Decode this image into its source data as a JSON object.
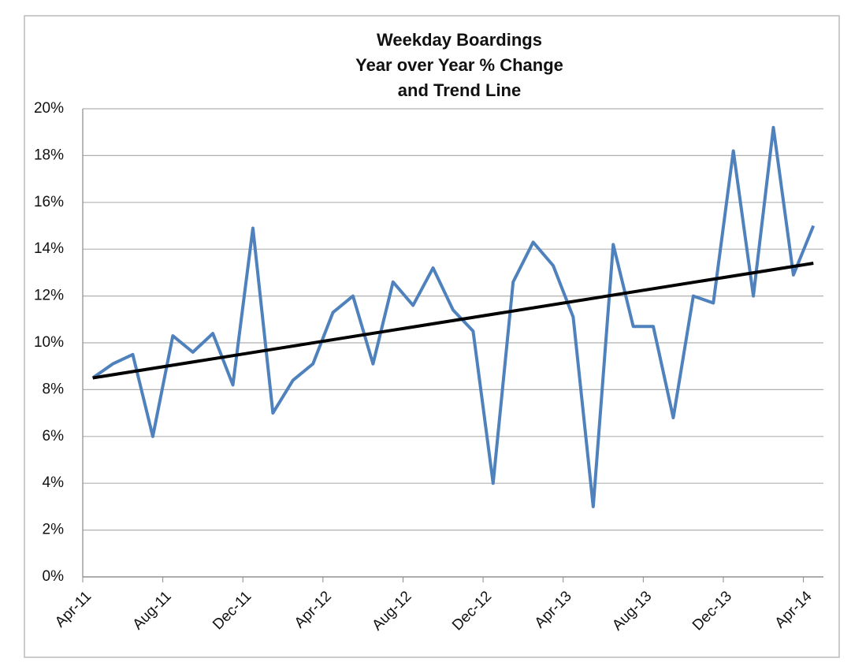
{
  "chart_data": {
    "type": "line",
    "title": [
      "Weekday Boardings",
      "Year over Year % Change",
      "and Trend Line"
    ],
    "categories": [
      "Apr-11",
      null,
      null,
      null,
      "Aug-11",
      null,
      null,
      null,
      "Dec-11",
      null,
      null,
      null,
      "Apr-12",
      null,
      null,
      null,
      "Aug-12",
      null,
      null,
      null,
      "Dec-12",
      null,
      null,
      null,
      "Apr-13",
      null,
      null,
      null,
      "Aug-13",
      null,
      null,
      null,
      "Dec-13",
      null,
      null,
      null,
      "Apr-14"
    ],
    "series": [
      {
        "color": "#4f81bd",
        "values": [
          8.5,
          9.1,
          9.5,
          6.0,
          10.3,
          9.6,
          10.4,
          8.2,
          14.9,
          7.0,
          8.4,
          9.1,
          11.3,
          12.0,
          9.1,
          12.6,
          11.6,
          13.2,
          11.4,
          10.5,
          4.0,
          12.6,
          14.3,
          13.3,
          11.1,
          3.0,
          14.2,
          10.7,
          10.7,
          6.8,
          12.0,
          11.7,
          18.2,
          12.0,
          19.2,
          12.9,
          15.0
        ]
      }
    ],
    "trend": {
      "color": "#000000",
      "start": 8.5,
      "end": 13.4
    },
    "ylim": [
      0,
      20
    ],
    "yticks": [
      {
        "value": 0,
        "label": "0%"
      },
      {
        "value": 2,
        "label": "2%"
      },
      {
        "value": 4,
        "label": "4%"
      },
      {
        "value": 6,
        "label": "6%"
      },
      {
        "value": 8,
        "label": "8%"
      },
      {
        "value": 10,
        "label": "10%"
      },
      {
        "value": 12,
        "label": "12%"
      },
      {
        "value": 14,
        "label": "14%"
      },
      {
        "value": 16,
        "label": "16%"
      },
      {
        "value": 18,
        "label": "18%"
      },
      {
        "value": 20,
        "label": "20%"
      }
    ],
    "grid": true
  }
}
